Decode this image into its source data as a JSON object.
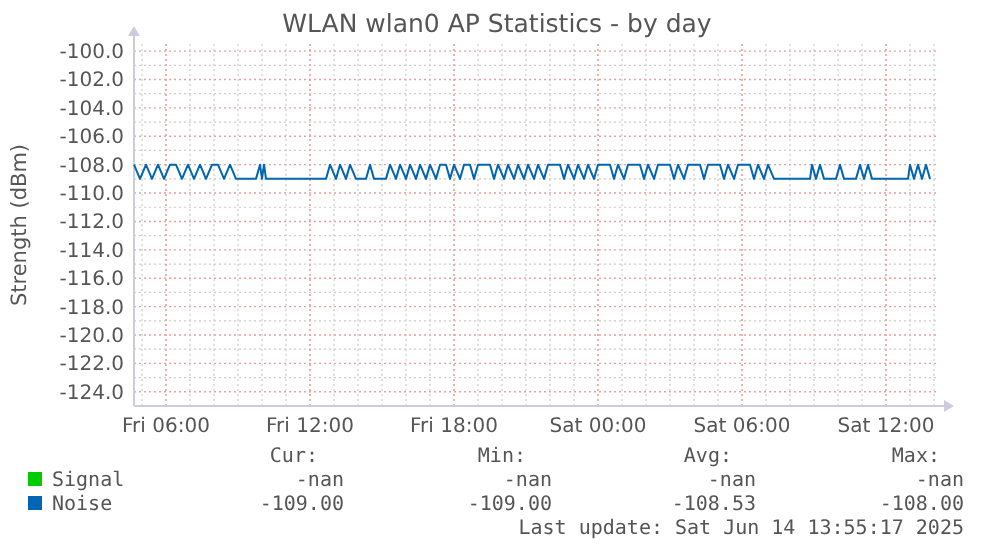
{
  "chart_data": {
    "type": "line",
    "title": "WLAN wlan0 AP Statistics - by day",
    "ylabel": "Strength (dBm)",
    "xlim": [
      "2025-06-13T04:40",
      "2025-06-14T14:05"
    ],
    "xticks": [
      {
        "value": "2025-06-13T06:00",
        "label": "Fri 06:00"
      },
      {
        "value": "2025-06-13T12:00",
        "label": "Fri 12:00"
      },
      {
        "value": "2025-06-13T18:00",
        "label": "Fri 18:00"
      },
      {
        "value": "2025-06-14T00:00",
        "label": "Sat 00:00"
      },
      {
        "value": "2025-06-14T06:00",
        "label": "Sat 06:00"
      },
      {
        "value": "2025-06-14T12:00",
        "label": "Sat 12:00"
      }
    ],
    "ylim": [
      -125,
      -99.5
    ],
    "yticks": [
      {
        "value": -100,
        "label": "-100.0"
      },
      {
        "value": -102,
        "label": "-102.0"
      },
      {
        "value": -104,
        "label": "-104.0"
      },
      {
        "value": -106,
        "label": "-106.0"
      },
      {
        "value": -108,
        "label": "-108.0"
      },
      {
        "value": -110,
        "label": "-110.0"
      },
      {
        "value": -112,
        "label": "-112.0"
      },
      {
        "value": -114,
        "label": "-114.0"
      },
      {
        "value": -116,
        "label": "-116.0"
      },
      {
        "value": -118,
        "label": "-118.0"
      },
      {
        "value": -120,
        "label": "-120.0"
      },
      {
        "value": -122,
        "label": "-122.0"
      },
      {
        "value": -124,
        "label": "-124.0"
      }
    ],
    "grid": true,
    "legend": "bottom left",
    "series": [
      {
        "name": "Signal",
        "color": "#00cc00"
      },
      {
        "name": "Noise",
        "color": "#0066b3",
        "x": [
          "2025-06-13T04:40",
          "2025-06-13T04:55",
          "2025-06-13T05:10",
          "2025-06-13T05:25",
          "2025-06-13T05:40",
          "2025-06-13T05:55",
          "2025-06-13T06:10",
          "2025-06-13T06:25",
          "2025-06-13T06:40",
          "2025-06-13T06:55",
          "2025-06-13T07:10",
          "2025-06-13T07:25",
          "2025-06-13T07:40",
          "2025-06-13T07:55",
          "2025-06-13T08:10",
          "2025-06-13T08:25",
          "2025-06-13T08:40",
          "2025-06-13T08:55",
          "2025-06-13T09:45",
          "2025-06-13T09:55",
          "2025-06-13T10:00",
          "2025-06-13T10:05",
          "2025-06-13T10:10",
          "2025-06-13T12:40",
          "2025-06-13T12:50",
          "2025-06-13T13:05",
          "2025-06-13T13:15",
          "2025-06-13T13:30",
          "2025-06-13T13:40",
          "2025-06-13T13:55",
          "2025-06-13T14:20",
          "2025-06-13T14:30",
          "2025-06-13T14:40",
          "2025-06-13T15:10",
          "2025-06-13T15:20",
          "2025-06-13T15:35",
          "2025-06-13T15:45",
          "2025-06-13T16:00",
          "2025-06-13T16:10",
          "2025-06-13T16:25",
          "2025-06-13T16:35",
          "2025-06-13T16:50",
          "2025-06-13T17:00",
          "2025-06-13T17:15",
          "2025-06-13T17:25",
          "2025-06-13T17:40",
          "2025-06-13T17:50",
          "2025-06-13T18:00",
          "2025-06-13T18:15",
          "2025-06-13T18:25",
          "2025-06-13T18:40",
          "2025-06-13T18:50",
          "2025-06-13T19:00",
          "2025-06-13T19:30",
          "2025-06-13T19:40",
          "2025-06-13T19:50",
          "2025-06-13T20:05",
          "2025-06-13T20:15",
          "2025-06-13T20:30",
          "2025-06-13T20:40",
          "2025-06-13T20:55",
          "2025-06-13T21:05",
          "2025-06-13T21:20",
          "2025-06-13T21:30",
          "2025-06-13T21:45",
          "2025-06-13T21:55",
          "2025-06-13T22:25",
          "2025-06-13T22:35",
          "2025-06-13T22:45",
          "2025-06-13T23:00",
          "2025-06-13T23:10",
          "2025-06-13T23:25",
          "2025-06-13T23:35",
          "2025-06-13T23:50",
          "2025-06-14T00:00",
          "2025-06-14T00:30",
          "2025-06-14T00:40",
          "2025-06-14T00:50",
          "2025-06-14T01:05",
          "2025-06-14T01:15",
          "2025-06-14T01:45",
          "2025-06-14T01:55",
          "2025-06-14T02:05",
          "2025-06-14T02:20",
          "2025-06-14T02:30",
          "2025-06-14T03:00",
          "2025-06-14T03:10",
          "2025-06-14T03:20",
          "2025-06-14T03:35",
          "2025-06-14T03:45",
          "2025-06-14T04:15",
          "2025-06-14T04:25",
          "2025-06-14T04:35",
          "2025-06-14T05:05",
          "2025-06-14T05:15",
          "2025-06-14T05:25",
          "2025-06-14T05:40",
          "2025-06-14T05:50",
          "2025-06-14T06:20",
          "2025-06-14T06:30",
          "2025-06-14T06:40",
          "2025-06-14T06:55",
          "2025-06-14T07:05",
          "2025-06-14T07:20",
          "2025-06-14T08:50",
          "2025-06-14T08:55",
          "2025-06-14T09:05",
          "2025-06-14T09:15",
          "2025-06-14T09:25",
          "2025-06-14T09:55",
          "2025-06-14T10:05",
          "2025-06-14T10:15",
          "2025-06-14T10:45",
          "2025-06-14T10:55",
          "2025-06-14T11:05",
          "2025-06-14T11:15",
          "2025-06-14T11:25",
          "2025-06-14T12:55",
          "2025-06-14T13:00",
          "2025-06-14T13:10",
          "2025-06-14T13:20",
          "2025-06-14T13:30",
          "2025-06-14T13:40",
          "2025-06-14T13:50"
        ],
        "values": [
          -108,
          -109,
          -108,
          -109,
          -108,
          -109,
          -108,
          -108,
          -109,
          -108,
          -109,
          -108,
          -109,
          -108,
          -108,
          -109,
          -108,
          -109,
          -109,
          -108,
          -109,
          -108,
          -109,
          -109,
          -108,
          -109,
          -108,
          -109,
          -108,
          -109,
          -109,
          -108,
          -109,
          -109,
          -108,
          -109,
          -108,
          -109,
          -108,
          -109,
          -108,
          -109,
          -108,
          -109,
          -108,
          -108,
          -109,
          -108,
          -109,
          -108,
          -108,
          -109,
          -108,
          -108,
          -109,
          -108,
          -109,
          -108,
          -109,
          -108,
          -109,
          -108,
          -109,
          -108,
          -109,
          -108,
          -108,
          -109,
          -108,
          -109,
          -108,
          -109,
          -108,
          -109,
          -108,
          -108,
          -109,
          -108,
          -109,
          -108,
          -108,
          -109,
          -108,
          -109,
          -108,
          -108,
          -109,
          -108,
          -109,
          -108,
          -108,
          -109,
          -108,
          -108,
          -109,
          -108,
          -109,
          -108,
          -108,
          -109,
          -108,
          -109,
          -108,
          -109,
          -109,
          -108,
          -109,
          -108,
          -109,
          -109,
          -108,
          -109,
          -109,
          -108,
          -109,
          -108,
          -109,
          -109,
          -108,
          -109,
          -108,
          -109,
          -108,
          -109
        ]
      }
    ],
    "annotations": [
      "Cur:",
      "Min:",
      "Avg:",
      "Max:",
      "-nan",
      "-nan",
      "-nan",
      "-nan",
      "-109.00",
      "-109.00",
      "-108.53",
      "-108.00",
      "Last update: Sat Jun 14 13:55:17 2025"
    ]
  }
}
